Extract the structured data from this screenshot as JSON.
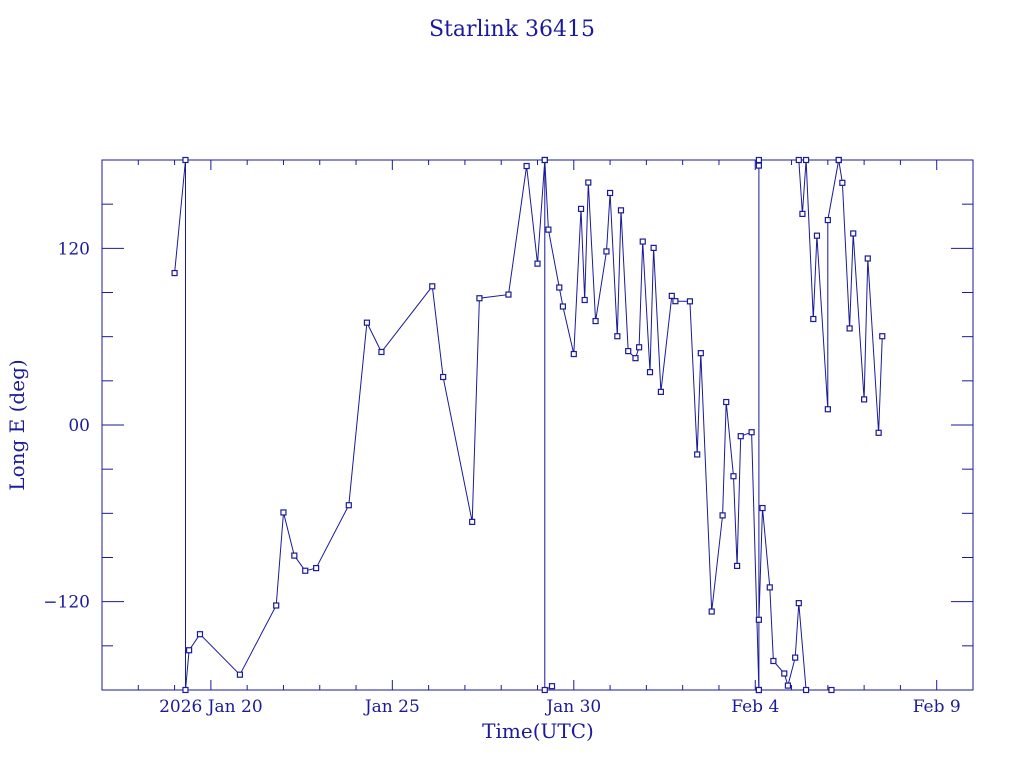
{
  "chart_data": {
    "type": "line",
    "title": "Starlink 36415",
    "xlabel": "Time(UTC)",
    "ylabel": "Long E (deg)",
    "x_ticks": [
      {
        "x": 20,
        "label": "2026 Jan 20"
      },
      {
        "x": 25,
        "label": "Jan 25"
      },
      {
        "x": 30,
        "label": "Jan 30"
      },
      {
        "x": 35,
        "label": "Feb  4"
      },
      {
        "x": 40,
        "label": "Feb  9"
      }
    ],
    "y_ticks": [
      {
        "y": 120,
        "label": "120"
      },
      {
        "y": 0,
        "label": "00"
      },
      {
        "y": -120,
        "label": "−120"
      }
    ],
    "xlim": [
      17,
      41
    ],
    "ylim": [
      -180,
      180
    ],
    "grid": false,
    "color": "#1a1a9a",
    "series": [
      {
        "points": [
          [
            19.0,
            103.2
          ],
          [
            19.3,
            180.0
          ],
          [
            19.3,
            -180.0
          ],
          [
            19.4,
            -153.0
          ],
          [
            19.7,
            -142.1
          ],
          [
            20.8,
            -169.6
          ],
          [
            21.8,
            -122.6
          ],
          [
            22.0,
            -59.4
          ],
          [
            22.3,
            -88.7
          ],
          [
            22.6,
            -99.0
          ],
          [
            22.9,
            -97.2
          ],
          [
            23.8,
            -54.5
          ],
          [
            24.3,
            69.5
          ],
          [
            24.7,
            49.6
          ],
          [
            26.1,
            94.2
          ],
          [
            26.4,
            32.6
          ],
          [
            27.2,
            -65.8
          ],
          [
            27.4,
            86.1
          ],
          [
            28.2,
            88.6
          ],
          [
            28.7,
            175.9
          ],
          [
            29.0,
            109.6
          ],
          [
            29.2,
            180.0
          ],
          [
            29.2,
            -180.0
          ],
          [
            29.4,
            -177.4
          ]
        ]
      },
      {
        "points": [
          [
            29.2,
            180.0
          ],
          [
            29.3,
            132.7
          ],
          [
            29.6,
            93.4
          ],
          [
            29.7,
            80.5
          ],
          [
            30.0,
            48.2
          ],
          [
            30.2,
            146.8
          ],
          [
            30.3,
            84.9
          ],
          [
            30.4,
            164.7
          ],
          [
            30.6,
            70.6
          ],
          [
            30.9,
            117.9
          ],
          [
            31.0,
            157.6
          ],
          [
            31.2,
            60.3
          ],
          [
            31.3,
            145.8
          ],
          [
            31.5,
            50.2
          ],
          [
            31.7,
            45.4
          ],
          [
            31.8,
            52.8
          ],
          [
            31.9,
            124.6
          ],
          [
            32.1,
            35.9
          ],
          [
            32.2,
            120.3
          ],
          [
            32.4,
            22.5
          ],
          [
            32.7,
            87.7
          ],
          [
            32.8,
            84.1
          ],
          [
            33.2,
            84.0
          ],
          [
            33.4,
            -20.0
          ],
          [
            33.5,
            48.8
          ],
          [
            33.8,
            -126.7
          ],
          [
            34.1,
            -61.4
          ],
          [
            34.2,
            15.6
          ],
          [
            34.4,
            -34.8
          ],
          [
            34.5,
            -95.7
          ],
          [
            34.6,
            -7.6
          ],
          [
            34.9,
            -4.9
          ],
          [
            35.1,
            -180.0
          ]
        ]
      },
      {
        "points": [
          [
            35.1,
            180.0
          ],
          [
            35.1,
            176.2
          ],
          [
            35.1,
            -180.0
          ],
          [
            35.1,
            -132.3
          ],
          [
            35.2,
            -56.4
          ],
          [
            35.4,
            -110.3
          ],
          [
            35.5,
            -160.3
          ],
          [
            35.8,
            -168.8
          ],
          [
            35.9,
            -177.0
          ],
          [
            36.1,
            -158.0
          ],
          [
            36.2,
            -121.0
          ],
          [
            36.4,
            -180.0
          ]
        ]
      },
      {
        "points": [
          [
            36.2,
            180.0
          ],
          [
            36.3,
            143.4
          ],
          [
            36.4,
            180.0
          ],
          [
            36.6,
            72.0
          ],
          [
            36.7,
            128.6
          ],
          [
            37.0,
            10.7
          ],
          [
            37.0,
            139.2
          ],
          [
            37.3,
            180.0
          ]
        ]
      },
      {
        "points": [
          [
            37.3,
            180.0
          ],
          [
            37.4,
            164.5
          ],
          [
            37.6,
            65.6
          ],
          [
            37.7,
            130.1
          ],
          [
            38.0,
            17.4
          ],
          [
            38.1,
            113.1
          ],
          [
            38.4,
            -5.3
          ],
          [
            38.5,
            60.3
          ]
        ]
      },
      {
        "points": [
          [
            37.1,
            -180.0
          ]
        ]
      }
    ]
  }
}
